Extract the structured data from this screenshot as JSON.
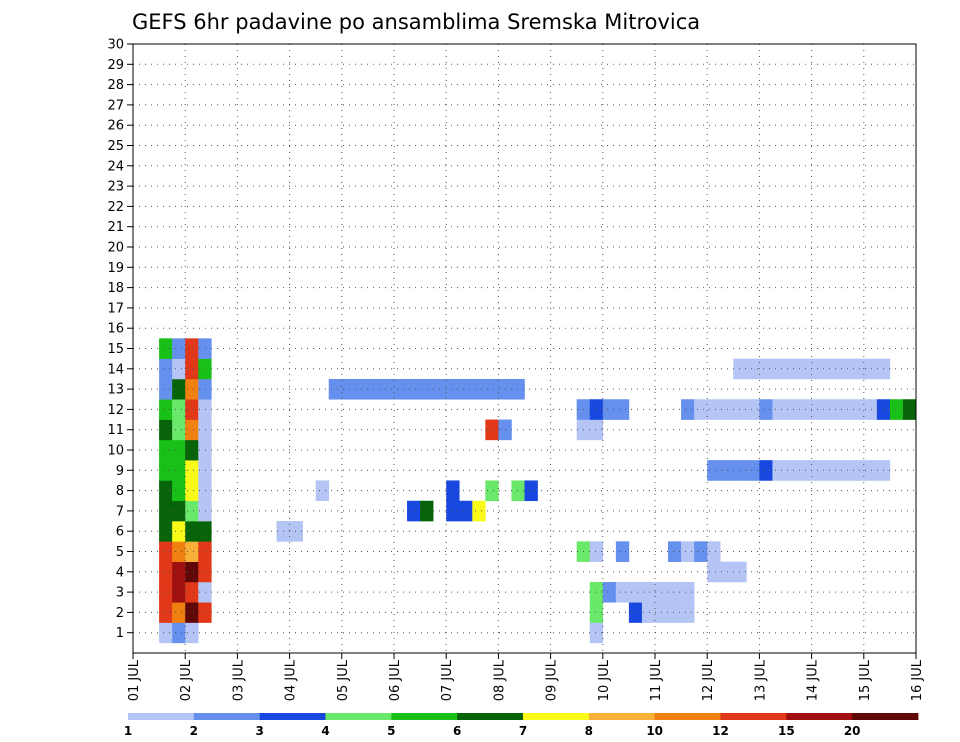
{
  "chart_data": {
    "type": "heatmap",
    "title": "GEFS 6hr padavine po ansamblima Sremska Mitrovica",
    "xlabel": "",
    "ylabel": "",
    "x_unit": "6h step",
    "x_ticks": [
      "01 JUL",
      "02 JUL",
      "03 JUL",
      "04 JUL",
      "05 JUL",
      "06 JUL",
      "07 JUL",
      "08 JUL",
      "09 JUL",
      "10 JUL",
      "11 JUL",
      "12 JUL",
      "13 JUL",
      "14 JUL",
      "15 JUL",
      "16 JUL"
    ],
    "y_ticks": [
      1,
      2,
      3,
      4,
      5,
      6,
      7,
      8,
      9,
      10,
      11,
      12,
      13,
      14,
      15,
      16,
      17,
      18,
      19,
      20,
      21,
      22,
      23,
      24,
      25,
      26,
      27,
      28,
      29,
      30
    ],
    "x_range_steps": [
      0,
      60
    ],
    "y_range": [
      0,
      30
    ],
    "grid": true,
    "colorbar": {
      "labels": [
        "1",
        "2",
        "3",
        "4",
        "5",
        "6",
        "7",
        "8",
        "10",
        "12",
        "15",
        "20"
      ],
      "colors": [
        "#b4c4f4",
        "#6690ee",
        "#1848e0",
        "#6ae86a",
        "#18c018",
        "#086408",
        "#fafa1a",
        "#f8b038",
        "#f08010",
        "#e03818",
        "#a01010",
        "#600808"
      ]
    },
    "cells": [
      [
        3,
        1,
        0
      ],
      [
        4,
        1,
        1
      ],
      [
        5,
        1,
        0
      ],
      [
        36,
        1,
        0
      ],
      [
        3,
        2,
        9
      ],
      [
        4,
        2,
        8
      ],
      [
        5,
        2,
        11
      ],
      [
        6,
        2,
        9
      ],
      [
        36,
        2,
        3
      ],
      [
        39,
        2,
        2
      ],
      [
        40,
        2,
        0
      ],
      [
        41,
        2,
        0
      ],
      [
        42,
        2,
        0
      ],
      [
        43,
        2,
        0
      ],
      [
        3,
        3,
        9
      ],
      [
        4,
        3,
        10
      ],
      [
        5,
        3,
        9
      ],
      [
        6,
        3,
        0
      ],
      [
        36,
        3,
        3
      ],
      [
        37,
        3,
        1
      ],
      [
        38,
        3,
        0
      ],
      [
        39,
        3,
        0
      ],
      [
        40,
        3,
        0
      ],
      [
        41,
        3,
        0
      ],
      [
        42,
        3,
        0
      ],
      [
        43,
        3,
        0
      ],
      [
        3,
        4,
        9
      ],
      [
        4,
        4,
        10
      ],
      [
        5,
        4,
        11
      ],
      [
        6,
        4,
        9
      ],
      [
        45,
        4,
        0
      ],
      [
        46,
        4,
        0
      ],
      [
        47,
        4,
        0
      ],
      [
        3,
        5,
        9
      ],
      [
        4,
        5,
        8
      ],
      [
        5,
        5,
        7
      ],
      [
        6,
        5,
        9
      ],
      [
        35,
        5,
        3
      ],
      [
        36,
        5,
        0
      ],
      [
        38,
        5,
        1
      ],
      [
        42,
        5,
        1
      ],
      [
        43,
        5,
        0
      ],
      [
        44,
        5,
        1
      ],
      [
        45,
        5,
        0
      ],
      [
        3,
        6,
        5
      ],
      [
        4,
        6,
        6
      ],
      [
        5,
        6,
        5
      ],
      [
        6,
        6,
        5
      ],
      [
        12,
        6,
        0
      ],
      [
        13,
        6,
        0
      ],
      [
        3,
        7,
        5
      ],
      [
        4,
        7,
        5
      ],
      [
        5,
        7,
        3
      ],
      [
        6,
        7,
        0
      ],
      [
        22,
        7,
        2
      ],
      [
        23,
        7,
        5
      ],
      [
        25,
        7,
        2
      ],
      [
        26,
        7,
        2
      ],
      [
        27,
        7,
        6
      ],
      [
        3,
        8,
        5
      ],
      [
        4,
        8,
        4
      ],
      [
        5,
        8,
        6
      ],
      [
        6,
        8,
        0
      ],
      [
        15,
        8,
        0
      ],
      [
        25,
        8,
        2
      ],
      [
        28,
        8,
        3
      ],
      [
        30,
        8,
        3
      ],
      [
        31,
        8,
        2
      ],
      [
        3,
        9,
        4
      ],
      [
        4,
        9,
        4
      ],
      [
        5,
        9,
        6
      ],
      [
        6,
        9,
        0
      ],
      [
        45,
        9,
        1
      ],
      [
        46,
        9,
        1
      ],
      [
        47,
        9,
        1
      ],
      [
        48,
        9,
        1
      ],
      [
        49,
        9,
        2
      ],
      [
        50,
        9,
        0
      ],
      [
        51,
        9,
        0
      ],
      [
        52,
        9,
        0
      ],
      [
        53,
        9,
        0
      ],
      [
        54,
        9,
        0
      ],
      [
        55,
        9,
        0
      ],
      [
        56,
        9,
        0
      ],
      [
        57,
        9,
        0
      ],
      [
        58,
        9,
        0
      ],
      [
        3,
        10,
        4
      ],
      [
        4,
        10,
        4
      ],
      [
        5,
        10,
        5
      ],
      [
        6,
        10,
        0
      ],
      [
        3,
        11,
        5
      ],
      [
        4,
        11,
        3
      ],
      [
        5,
        11,
        8
      ],
      [
        6,
        11,
        0
      ],
      [
        28,
        11,
        9
      ],
      [
        29,
        11,
        1
      ],
      [
        35,
        11,
        0
      ],
      [
        36,
        11,
        0
      ],
      [
        3,
        12,
        4
      ],
      [
        4,
        12,
        3
      ],
      [
        5,
        12,
        9
      ],
      [
        6,
        12,
        0
      ],
      [
        35,
        12,
        1
      ],
      [
        36,
        12,
        2
      ],
      [
        37,
        12,
        1
      ],
      [
        38,
        12,
        1
      ],
      [
        43,
        12,
        1
      ],
      [
        44,
        12,
        0
      ],
      [
        45,
        12,
        0
      ],
      [
        46,
        12,
        0
      ],
      [
        47,
        12,
        0
      ],
      [
        48,
        12,
        0
      ],
      [
        49,
        12,
        1
      ],
      [
        50,
        12,
        0
      ],
      [
        51,
        12,
        0
      ],
      [
        52,
        12,
        0
      ],
      [
        53,
        12,
        0
      ],
      [
        54,
        12,
        0
      ],
      [
        55,
        12,
        0
      ],
      [
        56,
        12,
        0
      ],
      [
        57,
        12,
        0
      ],
      [
        58,
        12,
        2
      ],
      [
        59,
        12,
        4
      ],
      [
        60,
        12,
        5
      ],
      [
        3,
        13,
        1
      ],
      [
        4,
        13,
        5
      ],
      [
        5,
        13,
        8
      ],
      [
        6,
        13,
        1
      ],
      [
        16,
        13,
        1
      ],
      [
        17,
        13,
        1
      ],
      [
        18,
        13,
        1
      ],
      [
        19,
        13,
        1
      ],
      [
        20,
        13,
        1
      ],
      [
        21,
        13,
        1
      ],
      [
        22,
        13,
        1
      ],
      [
        23,
        13,
        1
      ],
      [
        24,
        13,
        1
      ],
      [
        25,
        13,
        1
      ],
      [
        26,
        13,
        1
      ],
      [
        27,
        13,
        1
      ],
      [
        28,
        13,
        1
      ],
      [
        29,
        13,
        1
      ],
      [
        30,
        13,
        1
      ],
      [
        3,
        14,
        1
      ],
      [
        4,
        14,
        0
      ],
      [
        5,
        14,
        9
      ],
      [
        6,
        14,
        4
      ],
      [
        47,
        14,
        0
      ],
      [
        48,
        14,
        0
      ],
      [
        49,
        14,
        0
      ],
      [
        50,
        14,
        0
      ],
      [
        51,
        14,
        0
      ],
      [
        52,
        14,
        0
      ],
      [
        53,
        14,
        0
      ],
      [
        54,
        14,
        0
      ],
      [
        55,
        14,
        0
      ],
      [
        56,
        14,
        0
      ],
      [
        57,
        14,
        0
      ],
      [
        58,
        14,
        0
      ],
      [
        3,
        15,
        4
      ],
      [
        4,
        15,
        1
      ],
      [
        5,
        15,
        9
      ],
      [
        6,
        15,
        1
      ]
    ]
  }
}
